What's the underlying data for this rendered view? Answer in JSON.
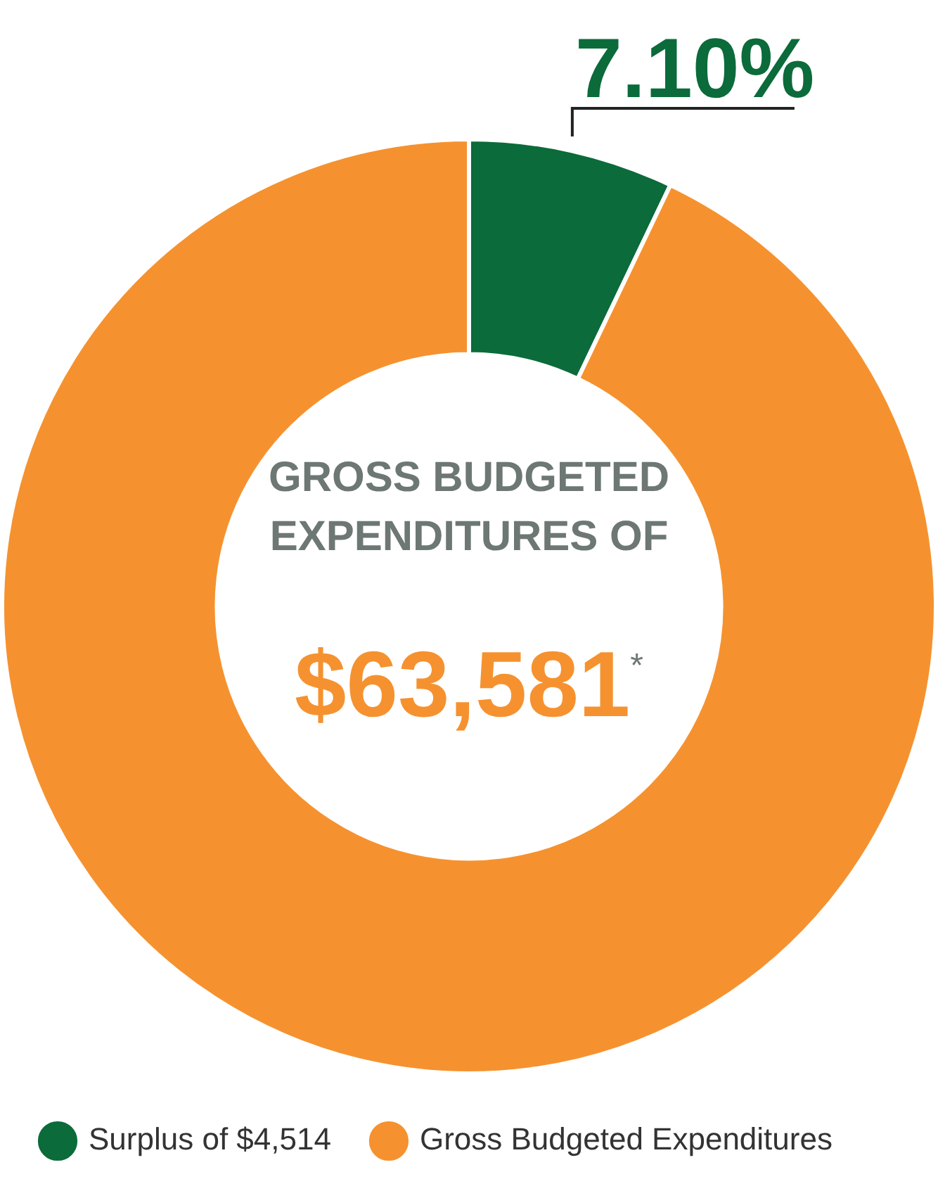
{
  "chart_data": {
    "type": "donut",
    "categories": [
      "Surplus of $4,514",
      "Gross Budgeted Expenditures"
    ],
    "values": [
      7.1,
      92.9
    ],
    "colors": [
      "#0b6b3a",
      "#f5922f"
    ],
    "value_labels": [
      "7.10%",
      null
    ],
    "annotations": [
      "GROSS BUDGETED EXPENDITURES OF",
      "$63,581$^{*}$"
    ],
    "legend": "bottom"
  }
}
